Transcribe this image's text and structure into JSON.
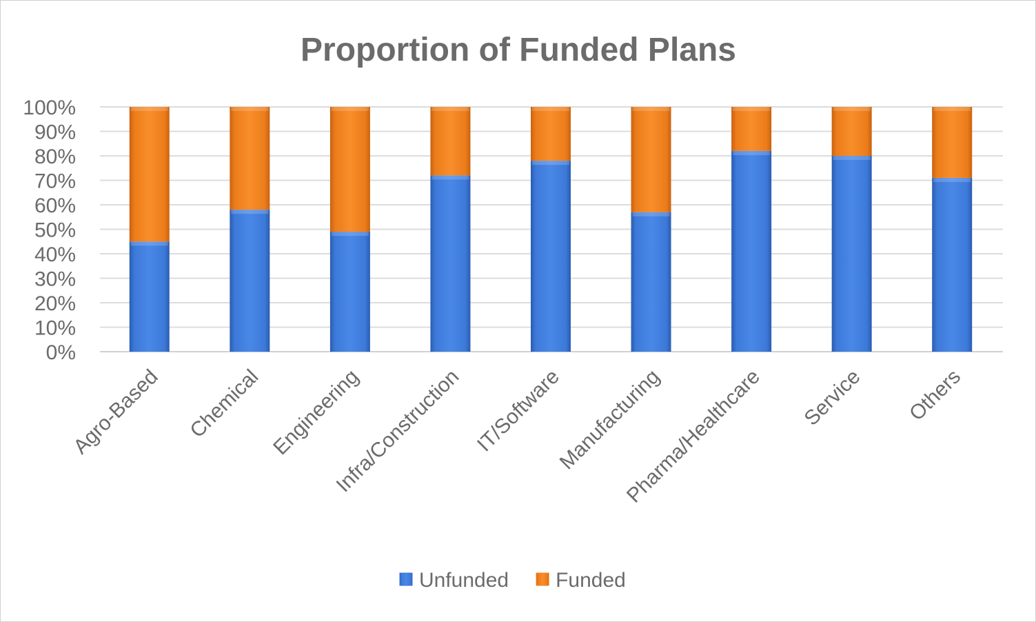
{
  "chart_data": {
    "type": "bar",
    "stacked": true,
    "title": "Proportion of Funded Plans",
    "categories": [
      "Agro-Based",
      "Chemical",
      "Engineering",
      "Infra/Construction",
      "IT/Software",
      "Manufacturing",
      "Pharma/Healthcare",
      "Service",
      "Others"
    ],
    "series": [
      {
        "name": "Unfunded",
        "color": "#3a76d6",
        "values": [
          45,
          58,
          49,
          72,
          78,
          57,
          82,
          80,
          71
        ]
      },
      {
        "name": "Funded",
        "color": "#f0801e",
        "values": [
          55,
          42,
          51,
          28,
          22,
          43,
          18,
          20,
          29
        ]
      }
    ],
    "ylim": [
      0,
      100
    ],
    "y_ticks": [
      "0%",
      "10%",
      "20%",
      "30%",
      "40%",
      "50%",
      "60%",
      "70%",
      "80%",
      "90%",
      "100%"
    ],
    "grid": true,
    "legend_position": "bottom"
  }
}
